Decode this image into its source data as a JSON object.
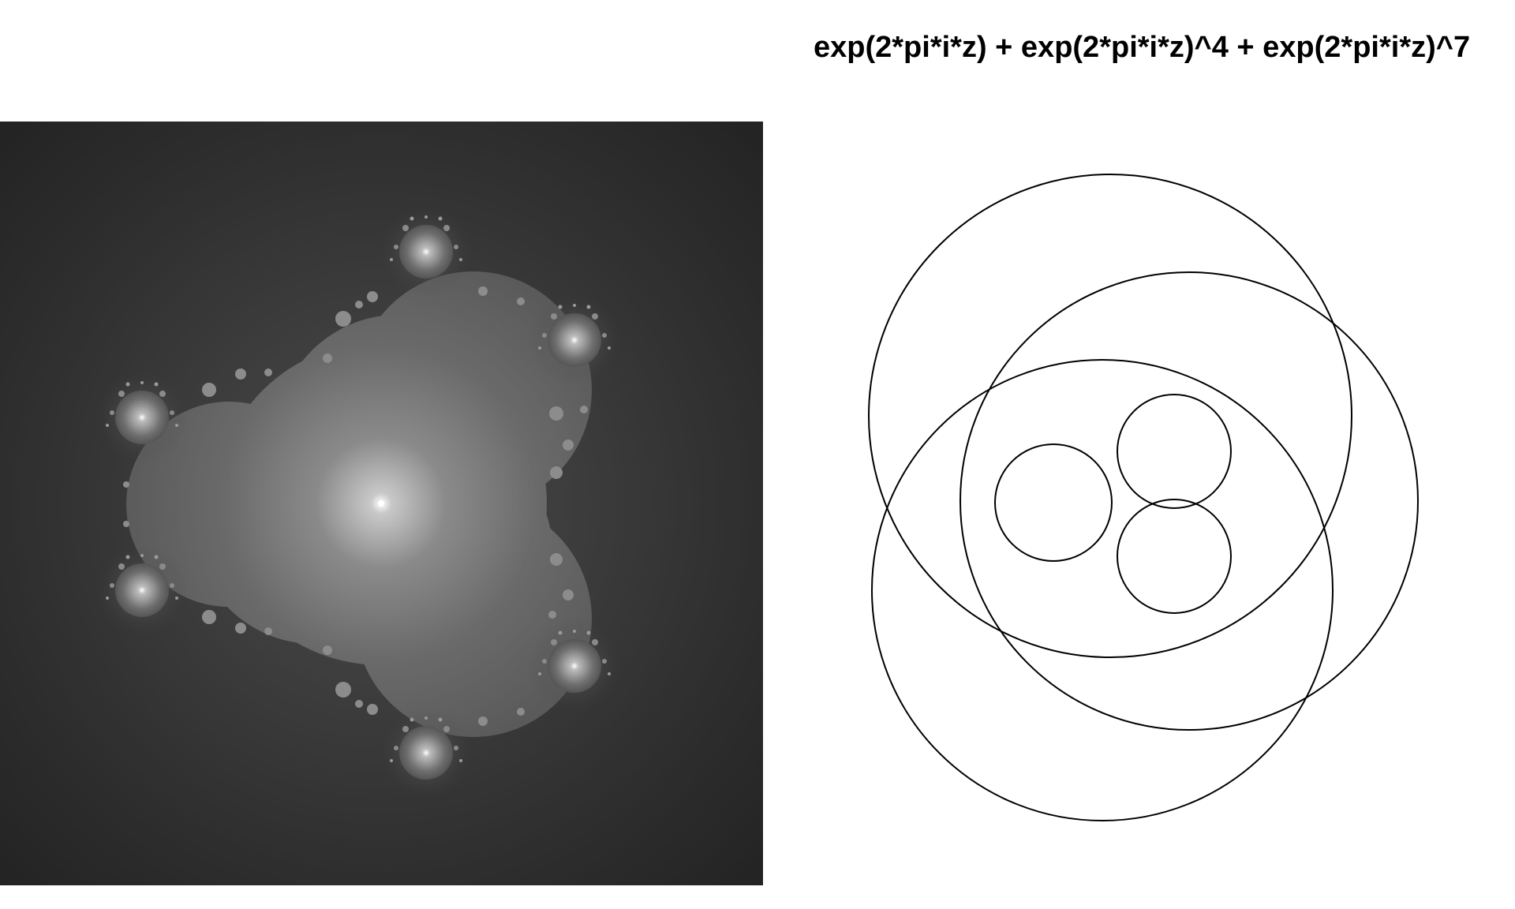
{
  "title": "exp(2*pi*i*z) + exp(2*pi*i*z)^4 + exp(2*pi*i*z)^7",
  "colors": {
    "background": "#ffffff",
    "fractal_background": "#2b2b2b",
    "fractal_fill": "#7a7a7a",
    "curve_stroke": "#000000"
  }
}
